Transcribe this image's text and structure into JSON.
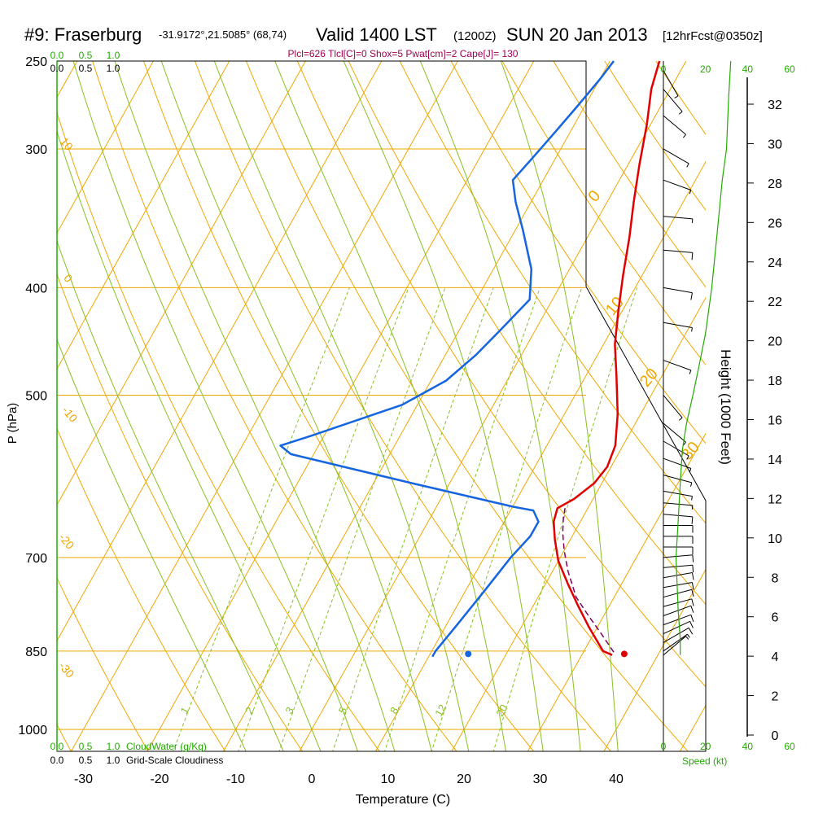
{
  "header": {
    "station": "#9: Fraserburg",
    "coords": "-31.9172°,21.5085° (68,74)",
    "valid": "Valid 1400 LST",
    "zulu": "(1200Z)",
    "date": "SUN 20 Jan 2013",
    "forecast": "[12hrFcst@0350z]",
    "params": "Plcl=626 Tlcl[C]=0 Shox=5 Pwat[cm]=2 Cape[J]= 130"
  },
  "legend": {
    "cloudwater_label": "CloudWater (g/Kg)",
    "cloudiness_label": "Grid-Scale Cloudiness",
    "speed_label": "Speed (kt)",
    "cloud_ticks": [
      "0.0",
      "0.5",
      "1.0"
    ],
    "speed_ticks": [
      "0",
      "20",
      "40",
      "60"
    ]
  },
  "colors": {
    "temperature": "#e00000",
    "dewpoint": "#1565e0",
    "parcel": "#800060",
    "isotherm": "#f0a800",
    "dry_adiabat": "#f0a800",
    "moist_adiabat": "#88c020",
    "mixing_ratio": "#88c020",
    "green_text": "#22aa00",
    "params_text": "#a00050"
  },
  "chart_data": {
    "type": "line",
    "title": "#9: Fraserburg Valid 1400 LST (1200Z) SUN 20 Jan 2013",
    "xlabel": "Temperature (C)",
    "ylabel": "P (hPa)",
    "y2label": "Height (1000 Feet)",
    "x_ticks": [
      "-30",
      "-20",
      "-10",
      "0",
      "10",
      "20",
      "30",
      "40"
    ],
    "y_ticks": [
      "250",
      "300",
      "400",
      "500",
      "700",
      "850",
      "1000"
    ],
    "height_ticks": [
      "0",
      "2",
      "4",
      "6",
      "8",
      "10",
      "12",
      "14",
      "16",
      "18",
      "20",
      "22",
      "24",
      "26",
      "28",
      "30",
      "32"
    ],
    "isotherm_labels": [
      "0",
      "10",
      "20",
      "30"
    ],
    "dry_adiabat_labels": [
      "10",
      "0",
      "-10",
      "-20",
      "-30"
    ],
    "mixing_ratio_labels": [
      "1",
      "2",
      "3",
      "5",
      "8",
      "12",
      "20"
    ],
    "series": [
      {
        "name": "temperature",
        "points": [
          [
            34,
            857
          ],
          [
            32.5,
            850
          ],
          [
            29,
            810
          ],
          [
            26,
            775
          ],
          [
            23,
            740
          ],
          [
            20,
            705
          ],
          [
            18,
            675
          ],
          [
            16.5,
            650
          ],
          [
            16,
            632
          ],
          [
            17.5,
            620
          ],
          [
            19,
            600
          ],
          [
            19.5,
            580
          ],
          [
            19,
            555
          ],
          [
            17,
            520
          ],
          [
            14,
            480
          ],
          [
            11.5,
            450
          ],
          [
            9.5,
            420
          ],
          [
            7.5,
            390
          ],
          [
            5.5,
            360
          ],
          [
            3.5,
            335
          ],
          [
            1.5,
            310
          ],
          [
            -0.5,
            285
          ],
          [
            -2.5,
            265
          ],
          [
            -3.5,
            250
          ]
        ]
      },
      {
        "name": "dewpoint",
        "points": [
          [
            10.5,
            860
          ],
          [
            10.5,
            850
          ],
          [
            11.5,
            800
          ],
          [
            12.5,
            750
          ],
          [
            13.5,
            700
          ],
          [
            14.5,
            670
          ],
          [
            14.5,
            650
          ],
          [
            13,
            635
          ],
          [
            10,
            630
          ],
          [
            -5,
            600
          ],
          [
            -10,
            590
          ],
          [
            -23,
            565
          ],
          [
            -25,
            555
          ],
          [
            -22,
            545
          ],
          [
            -12,
            510
          ],
          [
            -8,
            485
          ],
          [
            -6,
            460
          ],
          [
            -4.5,
            435
          ],
          [
            -3,
            410
          ],
          [
            -5,
            385
          ],
          [
            -9,
            355
          ],
          [
            -12,
            335
          ],
          [
            -14,
            320
          ],
          [
            -13,
            305
          ],
          [
            -12,
            290
          ],
          [
            -11,
            275
          ],
          [
            -10,
            260
          ],
          [
            -9.5,
            250
          ]
        ]
      },
      {
        "name": "parcel",
        "points": [
          [
            34,
            852
          ],
          [
            31,
            820
          ],
          [
            28,
            790
          ],
          [
            25,
            760
          ],
          [
            22,
            720
          ],
          [
            20,
            690
          ],
          [
            18.5,
            665
          ],
          [
            17.5,
            645
          ],
          [
            17,
            632
          ]
        ]
      }
    ],
    "surface_temperature": [
      35.5,
      855
    ],
    "surface_dewpoint": [
      15,
      855
    ],
    "wind_barbs": [
      {
        "p": 857,
        "dir": 310,
        "spd": 8
      },
      {
        "p": 850,
        "dir": 305,
        "spd": 9
      },
      {
        "p": 835,
        "dir": 300,
        "spd": 10
      },
      {
        "p": 820,
        "dir": 295,
        "spd": 10
      },
      {
        "p": 805,
        "dir": 290,
        "spd": 10
      },
      {
        "p": 790,
        "dir": 290,
        "spd": 11
      },
      {
        "p": 775,
        "dir": 285,
        "spd": 11
      },
      {
        "p": 760,
        "dir": 285,
        "spd": 11
      },
      {
        "p": 745,
        "dir": 280,
        "spd": 11
      },
      {
        "p": 730,
        "dir": 280,
        "spd": 11
      },
      {
        "p": 715,
        "dir": 275,
        "spd": 10
      },
      {
        "p": 700,
        "dir": 275,
        "spd": 10
      },
      {
        "p": 685,
        "dir": 270,
        "spd": 10
      },
      {
        "p": 670,
        "dir": 270,
        "spd": 10
      },
      {
        "p": 655,
        "dir": 270,
        "spd": 10
      },
      {
        "p": 640,
        "dir": 265,
        "spd": 10
      },
      {
        "p": 625,
        "dir": 265,
        "spd": 9
      },
      {
        "p": 610,
        "dir": 260,
        "spd": 8
      },
      {
        "p": 590,
        "dir": 255,
        "spd": 7
      },
      {
        "p": 570,
        "dir": 250,
        "spd": 7
      },
      {
        "p": 550,
        "dir": 240,
        "spd": 7
      },
      {
        "p": 530,
        "dir": 230,
        "spd": 7
      },
      {
        "p": 500,
        "dir": 220,
        "spd": 7
      },
      {
        "p": 465,
        "dir": 250,
        "spd": 8
      },
      {
        "p": 430,
        "dir": 260,
        "spd": 9
      },
      {
        "p": 400,
        "dir": 260,
        "spd": 10
      },
      {
        "p": 370,
        "dir": 265,
        "spd": 10
      },
      {
        "p": 345,
        "dir": 265,
        "spd": 9
      },
      {
        "p": 320,
        "dir": 250,
        "spd": 9
      },
      {
        "p": 300,
        "dir": 240,
        "spd": 9
      },
      {
        "p": 280,
        "dir": 230,
        "spd": 9
      },
      {
        "p": 265,
        "dir": 220,
        "spd": 9
      },
      {
        "p": 255,
        "dir": 210,
        "spd": 8
      }
    ],
    "speed_profile": [
      [
        8,
        857
      ],
      [
        8,
        830
      ],
      [
        7,
        780
      ],
      [
        6,
        700
      ],
      [
        7,
        650
      ],
      [
        8,
        600
      ],
      [
        9,
        560
      ],
      [
        11,
        530
      ],
      [
        14,
        500
      ],
      [
        17,
        470
      ],
      [
        20,
        440
      ],
      [
        23,
        400
      ],
      [
        26,
        350
      ],
      [
        28,
        320
      ],
      [
        30,
        300
      ],
      [
        31,
        270
      ],
      [
        32,
        250
      ]
    ]
  }
}
